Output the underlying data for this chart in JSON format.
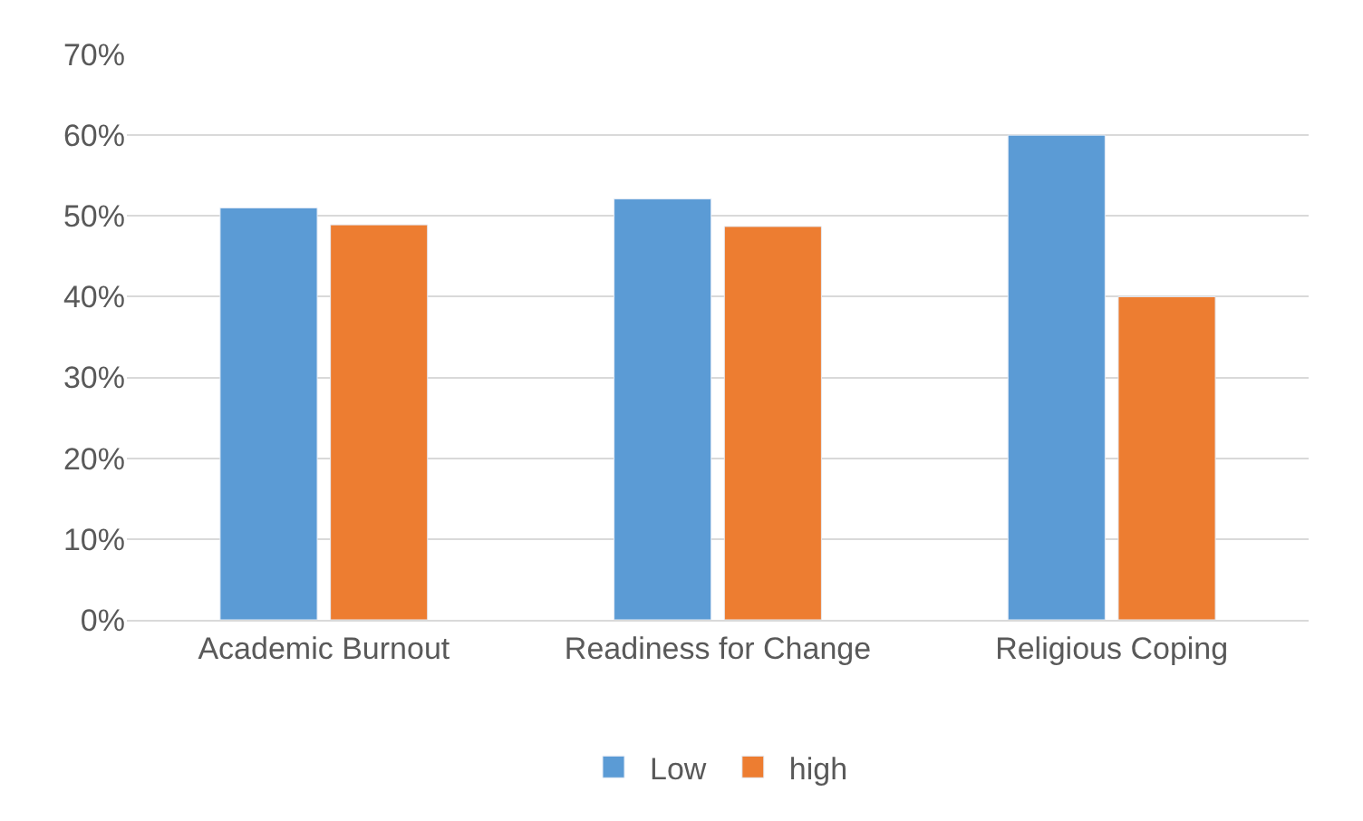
{
  "chart_data": {
    "type": "bar",
    "categories": [
      "Academic Burnout",
      "Readiness for Change",
      "Religious Coping"
    ],
    "series": [
      {
        "name": "Low",
        "color": "#5b9bd5",
        "values": [
          51,
          52.1,
          60
        ]
      },
      {
        "name": "high",
        "color": "#ed7d31",
        "values": [
          48.9,
          48.7,
          40
        ]
      }
    ],
    "ylim": [
      0,
      70
    ],
    "yticks": [
      {
        "value": 0,
        "label": "0%"
      },
      {
        "value": 10,
        "label": "10%"
      },
      {
        "value": 20,
        "label": "20%"
      },
      {
        "value": 30,
        "label": "30%"
      },
      {
        "value": 40,
        "label": "40%"
      },
      {
        "value": 50,
        "label": "50%"
      },
      {
        "value": 60,
        "label": "60%"
      },
      {
        "value": 70,
        "label": "70%"
      }
    ],
    "grid": "y",
    "legend": "bottom"
  }
}
